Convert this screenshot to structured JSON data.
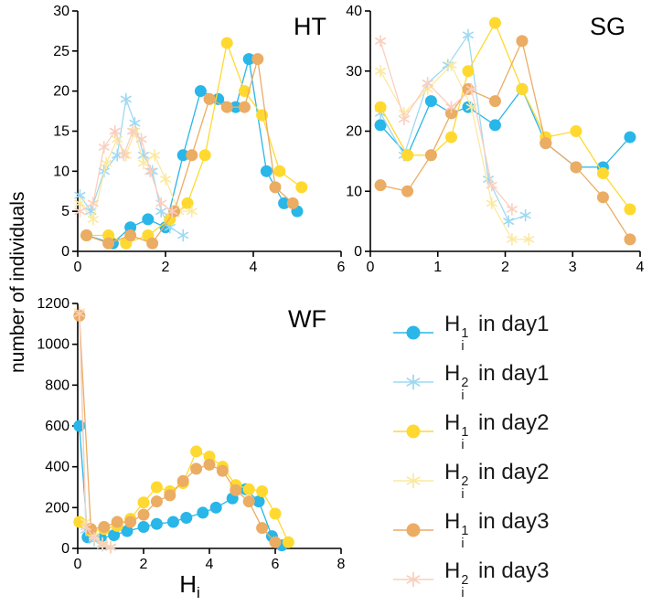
{
  "figure": {
    "ylabel": "number of individuals",
    "xlabel_base": "H",
    "xlabel_sub": "i"
  },
  "chart_data": [
    {
      "type": "line",
      "title": "HT",
      "xlim": [
        0,
        6
      ],
      "ylim": [
        0,
        30
      ],
      "xticks": [
        0,
        2,
        4,
        6
      ],
      "yticks": [
        0,
        5,
        10,
        15,
        20,
        25,
        30
      ],
      "grid": false,
      "series": [
        {
          "name": "H_i^1 in day1",
          "marker": "circle",
          "color": "#29B6E8",
          "x": [
            0.2,
            0.8,
            1.2,
            1.6,
            2.0,
            2.4,
            2.8,
            3.2,
            3.6,
            3.9,
            4.3,
            4.7,
            5.0
          ],
          "y": [
            2,
            1,
            3,
            4,
            3,
            12,
            20,
            19,
            18,
            24,
            10,
            6,
            5
          ]
        },
        {
          "name": "H_i^2 in day1",
          "marker": "asterisk",
          "color": "#9ED9F2",
          "x": [
            0.05,
            0.3,
            0.6,
            0.9,
            1.1,
            1.3,
            1.5,
            1.7,
            1.9,
            2.1,
            2.4
          ],
          "y": [
            7,
            5,
            10,
            12,
            19,
            16,
            12,
            10,
            5,
            3,
            2
          ]
        },
        {
          "name": "H_i^1 in day2",
          "marker": "circle",
          "color": "#FFD930",
          "x": [
            0.2,
            0.7,
            1.1,
            1.6,
            2.1,
            2.5,
            2.9,
            3.4,
            3.8,
            4.2,
            4.6,
            5.1
          ],
          "y": [
            2,
            2,
            1,
            2,
            4,
            6,
            12,
            26,
            20,
            17,
            10,
            8
          ]
        },
        {
          "name": "H_i^2 in day2",
          "marker": "asterisk",
          "color": "#FBE9A0",
          "x": [
            0.05,
            0.35,
            0.65,
            0.9,
            1.1,
            1.3,
            1.5,
            1.75,
            2.0,
            2.3,
            2.6
          ],
          "y": [
            6,
            4,
            11,
            14,
            12,
            15,
            11,
            12,
            9,
            5,
            5
          ]
        },
        {
          "name": "H_i^1 in day3",
          "marker": "circle",
          "color": "#EBAC63",
          "x": [
            0.2,
            0.7,
            1.2,
            1.7,
            2.2,
            2.6,
            3.0,
            3.4,
            3.8,
            4.1,
            4.5,
            4.9
          ],
          "y": [
            2,
            1,
            2,
            1,
            5,
            12,
            19,
            18,
            18,
            24,
            8,
            6
          ]
        },
        {
          "name": "H_i^2 in day3",
          "marker": "asterisk",
          "color": "#FACFBF",
          "x": [
            0.05,
            0.35,
            0.6,
            0.85,
            1.05,
            1.25,
            1.45,
            1.65,
            1.9,
            2.15
          ],
          "y": [
            5,
            6,
            13,
            15,
            12,
            15,
            14,
            10,
            6,
            5
          ]
        }
      ]
    },
    {
      "type": "line",
      "title": "SG",
      "xlim": [
        0,
        4
      ],
      "ylim": [
        0,
        40
      ],
      "xticks": [
        0,
        1,
        2,
        3,
        4
      ],
      "yticks": [
        0,
        10,
        20,
        30,
        40
      ],
      "grid": false,
      "series": [
        {
          "name": "H_i^1 in day1",
          "marker": "circle",
          "color": "#29B6E8",
          "x": [
            0.15,
            0.55,
            0.9,
            1.2,
            1.45,
            1.85,
            2.25,
            2.6,
            3.05,
            3.45,
            3.85
          ],
          "y": [
            21,
            16,
            25,
            23,
            24,
            21,
            27,
            18,
            14,
            14,
            19
          ]
        },
        {
          "name": "H_i^2 in day1",
          "marker": "asterisk",
          "color": "#9ED9F2",
          "x": [
            0.15,
            0.5,
            0.85,
            1.15,
            1.45,
            1.75,
            2.05,
            2.3
          ],
          "y": [
            23,
            16,
            28,
            31,
            36,
            12,
            5,
            6
          ]
        },
        {
          "name": "H_i^1 in day2",
          "marker": "circle",
          "color": "#FFD930",
          "x": [
            0.15,
            0.55,
            0.9,
            1.2,
            1.45,
            1.85,
            2.25,
            2.6,
            3.05,
            3.45,
            3.85
          ],
          "y": [
            24,
            16,
            16,
            19,
            30,
            38,
            27,
            19,
            20,
            13,
            7
          ]
        },
        {
          "name": "H_i^2 in day2",
          "marker": "asterisk",
          "color": "#FBE9A0",
          "x": [
            0.15,
            0.5,
            0.85,
            1.2,
            1.5,
            1.8,
            2.1,
            2.35
          ],
          "y": [
            30,
            23,
            27,
            31,
            24,
            8,
            2,
            2
          ]
        },
        {
          "name": "H_i^1 in day3",
          "marker": "circle",
          "color": "#EBAC63",
          "x": [
            0.15,
            0.55,
            0.9,
            1.2,
            1.45,
            1.85,
            2.25,
            2.6,
            3.05,
            3.45,
            3.85
          ],
          "y": [
            11,
            10,
            16,
            23,
            27,
            25,
            35,
            18,
            14,
            9,
            2
          ]
        },
        {
          "name": "H_i^2 in day3",
          "marker": "asterisk",
          "color": "#FACFBF",
          "x": [
            0.15,
            0.5,
            0.85,
            1.2,
            1.5,
            1.8,
            2.1
          ],
          "y": [
            35,
            22,
            28,
            24,
            27,
            11,
            7
          ]
        }
      ]
    },
    {
      "type": "line",
      "title": "WF",
      "xlim": [
        0,
        8
      ],
      "ylim": [
        0,
        1200
      ],
      "xticks": [
        0,
        2,
        4,
        6,
        8
      ],
      "yticks": [
        0,
        200,
        400,
        600,
        800,
        1000,
        1200
      ],
      "grid": false,
      "series": [
        {
          "name": "H_i^1 in day1",
          "marker": "circle",
          "color": "#29B6E8",
          "x": [
            0.05,
            0.3,
            0.7,
            1.1,
            1.5,
            2.0,
            2.4,
            2.9,
            3.3,
            3.8,
            4.2,
            4.7,
            5.1,
            5.5,
            5.9,
            6.2
          ],
          "y": [
            600,
            55,
            50,
            65,
            85,
            105,
            120,
            130,
            150,
            175,
            200,
            245,
            290,
            230,
            60,
            15
          ]
        },
        {
          "name": "H_i^2 in day1",
          "marker": "asterisk",
          "color": "#9ED9F2",
          "x": [
            0.05,
            0.25,
            0.5,
            0.75,
            1.0
          ],
          "y": [
            1150,
            90,
            40,
            15,
            5
          ]
        },
        {
          "name": "H_i^1 in day2",
          "marker": "circle",
          "color": "#FFD930",
          "x": [
            0.05,
            0.4,
            0.8,
            1.2,
            1.6,
            2.0,
            2.4,
            2.8,
            3.2,
            3.6,
            4.0,
            4.4,
            4.8,
            5.2,
            5.6,
            6.0,
            6.4
          ],
          "y": [
            130,
            85,
            95,
            110,
            145,
            225,
            300,
            280,
            320,
            475,
            450,
            400,
            310,
            290,
            280,
            170,
            30
          ]
        },
        {
          "name": "H_i^2 in day2",
          "marker": "asterisk",
          "color": "#FBE9A0",
          "x": [
            0.05,
            0.25,
            0.5,
            0.75,
            1.0
          ],
          "y": [
            1160,
            130,
            60,
            25,
            8
          ]
        },
        {
          "name": "H_i^1 in day3",
          "marker": "circle",
          "color": "#EBAC63",
          "x": [
            0.05,
            0.4,
            0.8,
            1.2,
            1.6,
            2.0,
            2.4,
            2.8,
            3.2,
            3.6,
            4.0,
            4.4,
            4.8,
            5.2,
            5.6,
            6.0
          ],
          "y": [
            1140,
            95,
            105,
            130,
            130,
            165,
            230,
            260,
            330,
            390,
            410,
            380,
            285,
            230,
            100,
            30
          ]
        },
        {
          "name": "H_i^2 in day3",
          "marker": "asterisk",
          "color": "#FACFBF",
          "x": [
            0.05,
            0.25,
            0.5,
            0.75,
            1.0
          ],
          "y": [
            1150,
            105,
            50,
            18,
            6
          ]
        }
      ]
    }
  ],
  "legend": {
    "position": "bottom-right",
    "entries": [
      {
        "marker": "circle",
        "color": "#29B6E8",
        "base": "H",
        "sup": "1",
        "sub": "i",
        "suffix": "in day1"
      },
      {
        "marker": "asterisk",
        "color": "#9ED9F2",
        "base": "H",
        "sup": "2",
        "sub": "i",
        "suffix": "in day1"
      },
      {
        "marker": "circle",
        "color": "#FFD930",
        "base": "H",
        "sup": "1",
        "sub": "i",
        "suffix": "in day2"
      },
      {
        "marker": "asterisk",
        "color": "#FBE9A0",
        "base": "H",
        "sup": "2",
        "sub": "i",
        "suffix": "in day2"
      },
      {
        "marker": "circle",
        "color": "#EBAC63",
        "base": "H",
        "sup": "1",
        "sub": "i",
        "suffix": "in day3"
      },
      {
        "marker": "asterisk",
        "color": "#FACFBF",
        "base": "H",
        "sup": "2",
        "sub": "i",
        "suffix": "in day3"
      }
    ]
  }
}
